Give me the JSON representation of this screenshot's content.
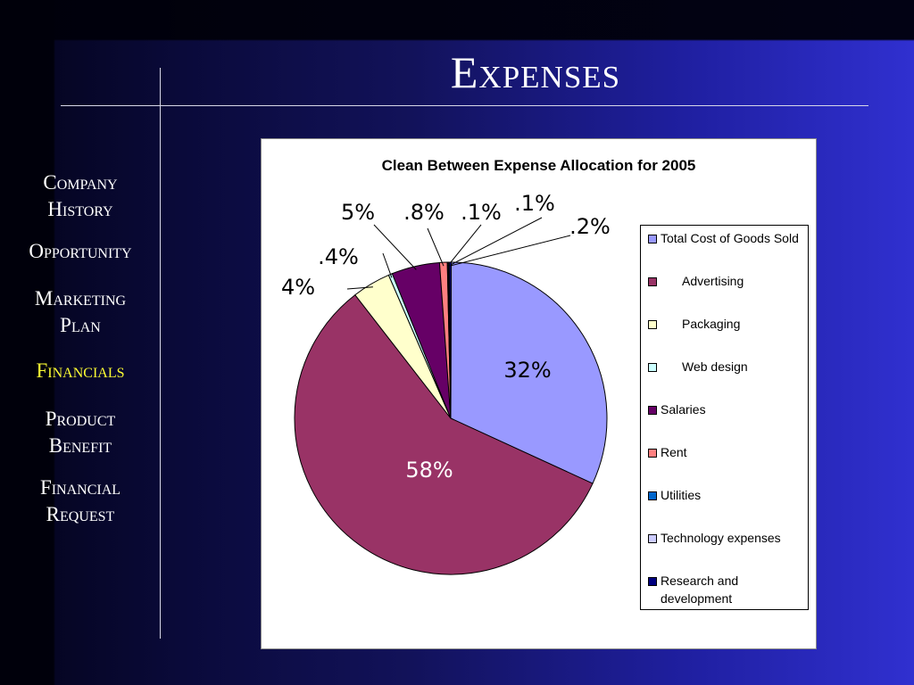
{
  "slide": {
    "title": "Expenses"
  },
  "nav": {
    "items": [
      {
        "label": "Company History",
        "active": false
      },
      {
        "label": "Opportunity",
        "active": false
      },
      {
        "label": "Marketing Plan",
        "active": false
      },
      {
        "label": "Financials",
        "active": true
      },
      {
        "label": "Product Benefit",
        "active": false
      },
      {
        "label": "Financial Request",
        "active": false
      }
    ],
    "active_color": "#ffff33",
    "text_color": "#ffffff"
  },
  "chart_data": {
    "type": "pie",
    "title": "Clean Between Expense Allocation for 2005",
    "legend_position": "right",
    "slices": [
      {
        "name": "Total Cost of Goods Sold",
        "value": 32,
        "label": "32%",
        "color": "#9999ff"
      },
      {
        "name": "Advertising",
        "value": 58,
        "label": "58%",
        "color": "#993366"
      },
      {
        "name": "Packaging",
        "value": 4,
        "label": "4%",
        "color": "#ffffcc"
      },
      {
        "name": "Web design",
        "value": 0.4,
        "label": ".4%",
        "color": "#ccffff"
      },
      {
        "name": "Salaries",
        "value": 5,
        "label": "5%",
        "color": "#660066"
      },
      {
        "name": "Rent",
        "value": 0.8,
        "label": ".8%",
        "color": "#ff8080"
      },
      {
        "name": "Utilities",
        "value": 0.1,
        "label": ".1%",
        "color": "#0066cc"
      },
      {
        "name": "Technology expenses",
        "value": 0.1,
        "label": ".1%",
        "color": "#ccccff"
      },
      {
        "name": "Research and development",
        "value": 0.2,
        "label": ".2%",
        "color": "#000080"
      }
    ]
  }
}
